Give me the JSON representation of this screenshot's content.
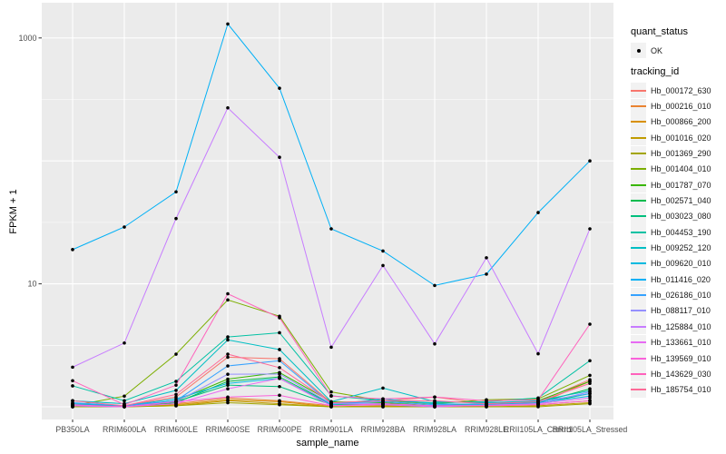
{
  "figure": {
    "background_color": "#FFFFFF",
    "panel_background_color": "#EBEBEB",
    "gridline_color": "#FFFFFF",
    "tick_color": "#333333",
    "tick_label_color": "#4D4D4D",
    "axis_title_color": "#000000",
    "point_color": "#000000"
  },
  "legend": {
    "quant_status_title": "quant_status",
    "quant_status_items": [
      {
        "label": "OK",
        "marker": "black-point"
      }
    ],
    "tracking_id_title": "tracking_id"
  },
  "chart_data": {
    "type": "line",
    "title": "",
    "xlabel": "sample_name",
    "ylabel": "FPKM + 1",
    "y_scale": "log10",
    "ylim": [
      0.8,
      1900
    ],
    "y_ticks": [
      10,
      1000
    ],
    "y_tick_labels": [
      "10",
      "1000"
    ],
    "y_major_gridlines": [
      1,
      10,
      100,
      1000
    ],
    "y_minor_gridlines": [
      3.162,
      31.62,
      316.2
    ],
    "grid": true,
    "legend_position": "right",
    "marker": "point",
    "categories": [
      "PB350LA",
      "RRIM600LA",
      "RRIM600LE",
      "RRIM600SE",
      "RRIM600PE",
      "RRIM901LA",
      "RRIM928BA",
      "RRIM928LA",
      "RRIM928LE",
      "RRII105LA_Control",
      "RRII105LA_Stressed"
    ],
    "series": [
      {
        "name": "Hb_000172_630",
        "color": "#F8766D",
        "values": [
          1.06,
          1.02,
          1.2,
          2.53,
          2.46,
          1.08,
          1.12,
          1.2,
          1.06,
          1.1,
          1.66
        ]
      },
      {
        "name": "Hb_000216_010",
        "color": "#EA8331",
        "values": [
          1.02,
          1.0,
          1.06,
          1.18,
          1.12,
          1.02,
          1.06,
          1.02,
          1.04,
          1.06,
          1.61
        ]
      },
      {
        "name": "Hb_000866_200",
        "color": "#D89000",
        "values": [
          1.0,
          1.0,
          1.04,
          1.14,
          1.1,
          1.0,
          1.02,
          1.0,
          1.02,
          1.04,
          1.12
        ]
      },
      {
        "name": "Hb_001016_020",
        "color": "#C09B00",
        "values": [
          1.0,
          1.0,
          1.02,
          1.12,
          1.06,
          1.0,
          1.0,
          1.0,
          1.0,
          1.02,
          1.08
        ]
      },
      {
        "name": "Hb_001369_290",
        "color": "#A3A500",
        "values": [
          1.0,
          1.0,
          1.02,
          1.08,
          1.04,
          1.0,
          1.0,
          1.0,
          1.0,
          1.0,
          1.06
        ]
      },
      {
        "name": "Hb_001404_010",
        "color": "#7CAE00",
        "values": [
          1.02,
          1.22,
          2.68,
          7.4,
          5.45,
          1.32,
          1.12,
          1.06,
          1.14,
          1.16,
          1.8
        ]
      },
      {
        "name": "Hb_001787_070",
        "color": "#39B600",
        "values": [
          1.04,
          1.02,
          1.12,
          1.68,
          1.9,
          1.1,
          1.08,
          1.02,
          1.06,
          1.12,
          1.61
        ]
      },
      {
        "name": "Hb_002571_040",
        "color": "#00BB4E",
        "values": [
          1.02,
          1.0,
          1.08,
          1.61,
          1.75,
          1.06,
          1.04,
          1.0,
          1.04,
          1.08,
          1.4
        ]
      },
      {
        "name": "Hb_003023_080",
        "color": "#00BF7D",
        "values": [
          1.04,
          1.02,
          1.1,
          1.5,
          1.46,
          1.04,
          1.06,
          1.02,
          1.04,
          1.06,
          1.28
        ]
      },
      {
        "name": "Hb_004453_190",
        "color": "#00C1A3",
        "values": [
          1.48,
          1.12,
          1.61,
          3.7,
          4.0,
          1.23,
          1.12,
          1.08,
          1.1,
          1.18,
          2.37
        ]
      },
      {
        "name": "Hb_009252_120",
        "color": "#00BFC4",
        "values": [
          1.12,
          1.06,
          1.36,
          3.5,
          2.92,
          1.1,
          1.42,
          1.1,
          1.08,
          1.12,
          1.35
        ]
      },
      {
        "name": "Hb_009620_010",
        "color": "#00BAE0",
        "values": [
          1.06,
          1.02,
          1.16,
          1.55,
          1.7,
          1.04,
          1.16,
          1.06,
          1.04,
          1.08,
          1.22
        ]
      },
      {
        "name": "Hb_011416_020",
        "color": "#00B0F6",
        "values": [
          19,
          29,
          56,
          1300,
          390,
          28,
          18.5,
          9.7,
          12,
          38,
          100
        ]
      },
      {
        "name": "Hb_026186_010",
        "color": "#35A2FF",
        "values": [
          1.08,
          1.02,
          1.12,
          2.15,
          2.37,
          1.06,
          1.1,
          1.04,
          1.06,
          1.1,
          1.28
        ]
      },
      {
        "name": "Hb_088117_010",
        "color": "#9590FF",
        "values": [
          1.02,
          1.0,
          1.1,
          1.84,
          1.85,
          1.06,
          1.06,
          1.02,
          1.03,
          1.06,
          1.32
        ]
      },
      {
        "name": "Hb_125884_010",
        "color": "#C77CFF",
        "values": [
          2.1,
          3.3,
          34,
          270,
          107,
          3.05,
          14.1,
          3.25,
          16.3,
          2.7,
          28
        ]
      },
      {
        "name": "Hb_133661_010",
        "color": "#E76BF3",
        "values": [
          1.02,
          1.0,
          1.06,
          1.4,
          1.7,
          1.02,
          1.04,
          1.0,
          1.03,
          1.06,
          1.18
        ]
      },
      {
        "name": "Hb_139569_010",
        "color": "#FA62DB",
        "values": [
          1.04,
          1.0,
          1.1,
          1.2,
          1.24,
          1.02,
          1.06,
          1.02,
          1.02,
          1.04,
          1.12
        ]
      },
      {
        "name": "Hb_143629_030",
        "color": "#FF62BC",
        "values": [
          1.63,
          1.04,
          1.5,
          8.3,
          5.3,
          1.22,
          1.16,
          1.2,
          1.12,
          1.14,
          4.7
        ]
      },
      {
        "name": "Hb_185754_010",
        "color": "#FF6A98",
        "values": [
          1.12,
          1.02,
          1.26,
          2.68,
          2.08,
          1.08,
          1.12,
          1.12,
          1.06,
          1.1,
          1.55
        ]
      }
    ]
  }
}
